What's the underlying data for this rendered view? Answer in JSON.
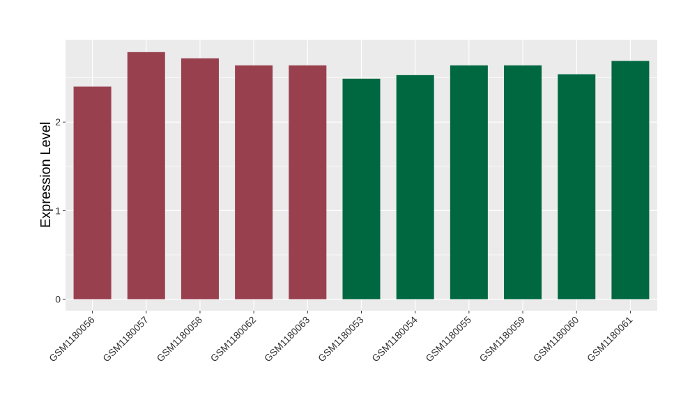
{
  "chart_data": {
    "type": "bar",
    "title": "",
    "xlabel": "",
    "ylabel": "Expression Level",
    "ylim": [
      -0.13,
      2.93
    ],
    "yticks": [
      0,
      1,
      2
    ],
    "grid": true,
    "legend": "none",
    "categories": [
      "GSM1180056",
      "GSM1180057",
      "GSM1180058",
      "GSM1180062",
      "GSM1180063",
      "GSM1180053",
      "GSM1180054",
      "GSM1180055",
      "GSM1180059",
      "GSM1180060",
      "GSM1180061"
    ],
    "values": [
      2.4,
      2.79,
      2.72,
      2.64,
      2.64,
      2.49,
      2.53,
      2.64,
      2.64,
      2.54,
      2.69
    ],
    "bar_colors": [
      "#99404F",
      "#99404F",
      "#99404F",
      "#99404F",
      "#99404F",
      "#006841",
      "#006841",
      "#006841",
      "#006841",
      "#006841",
      "#006841"
    ],
    "panel_background": "#EBEBEB",
    "grid_color": "#FFFFFF"
  }
}
